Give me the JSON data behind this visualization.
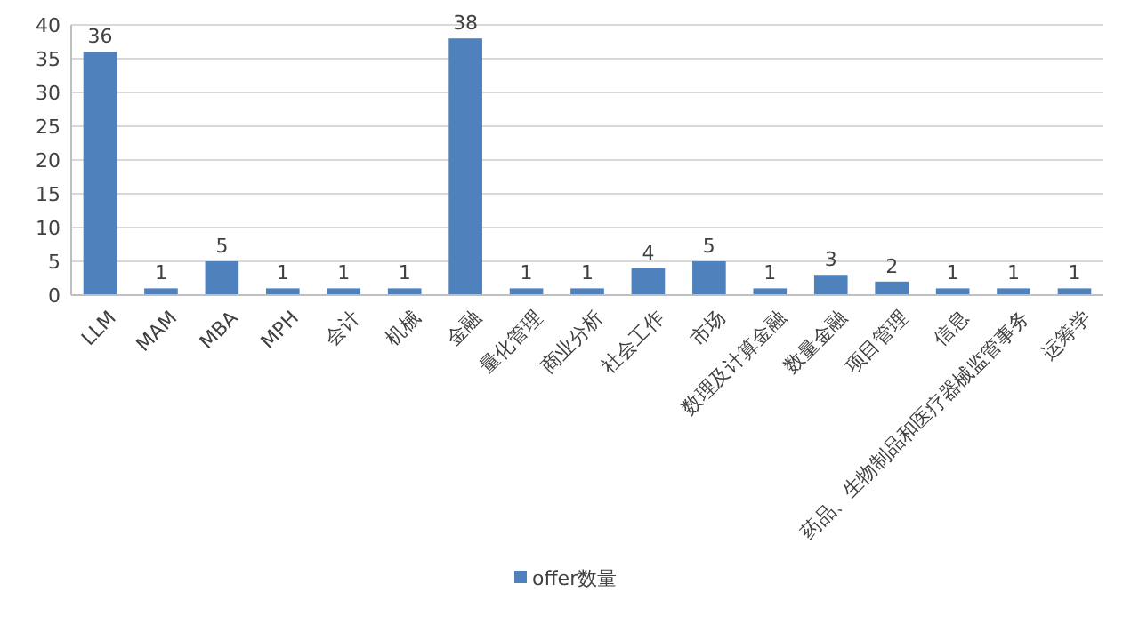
{
  "chart_data": {
    "type": "bar",
    "categories": [
      "LLM",
      "MAM",
      "MBA",
      "MPH",
      "会计",
      "机械",
      "金融",
      "量化管理",
      "商业分析",
      "社会工作",
      "市场",
      "数理及计算金融",
      "数量金融",
      "项目管理",
      "信息",
      "药品、生物制品和医疗器械监管事务",
      "运筹学"
    ],
    "series": [
      {
        "name": "offer数量",
        "color": "#4f81bd",
        "values": [
          36,
          1,
          5,
          1,
          1,
          1,
          38,
          1,
          1,
          4,
          5,
          1,
          3,
          2,
          1,
          1,
          1
        ]
      }
    ],
    "ylim": [
      0,
      40
    ],
    "yticks": [
      0,
      5,
      10,
      15,
      20,
      25,
      30,
      35,
      40
    ],
    "grid": "y",
    "data_labels": true,
    "legend": "bottom"
  }
}
